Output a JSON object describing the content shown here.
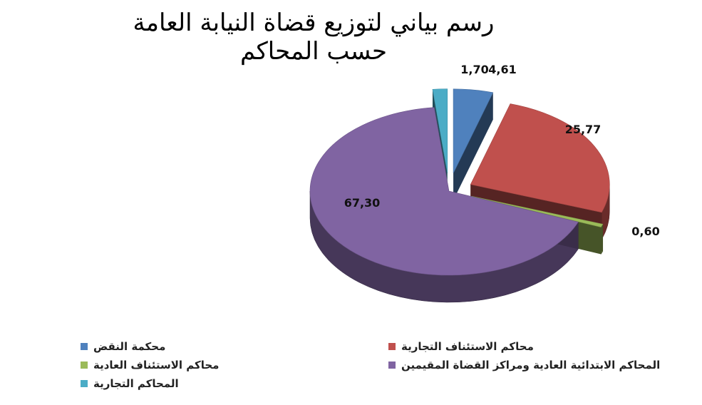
{
  "chart_data": {
    "type": "pie",
    "title": "رسم بياني لتوزيع قضاة النيابة العامة حسب المحاكم",
    "value_labels": [
      "4,61",
      "25,77",
      "0,60",
      "67,30",
      "1,70"
    ],
    "slices": [
      {
        "name": "محكمة النقض",
        "value": 4.61,
        "color": "#4F81BD"
      },
      {
        "name": "محاكم الاستئناف التجارية",
        "value": 25.77,
        "color": "#C0504D"
      },
      {
        "name": "محاكم الاستئناف العادية",
        "value": 0.6,
        "color": "#9BBB59"
      },
      {
        "name": "المحاكم الابتدائية العادية ومراكز القضاة المقيمين",
        "value": 67.3,
        "color": "#8064A2"
      },
      {
        "name": "المحاكم التجارية",
        "value": 1.7,
        "color": "#4BACC6"
      }
    ],
    "legend_placement": "bottom",
    "exploded": true,
    "three_d": true
  }
}
